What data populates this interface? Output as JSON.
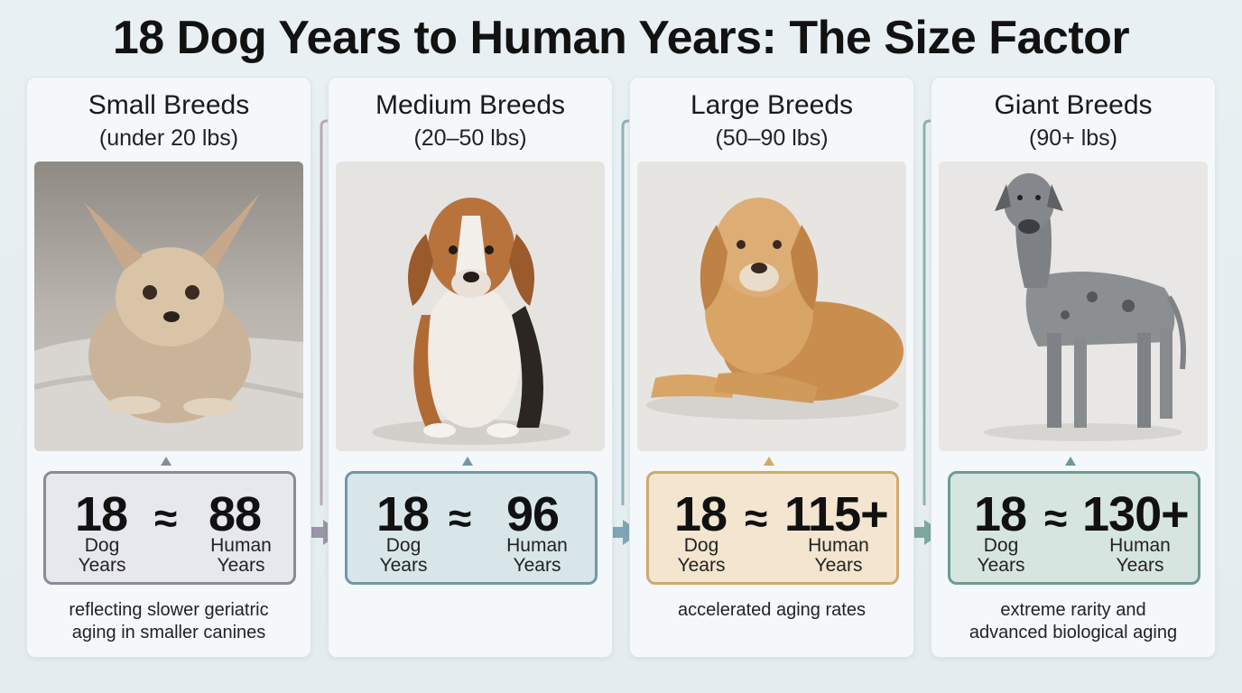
{
  "title": "18 Dog Years to Human Years: The Size Factor",
  "cards": [
    {
      "title": "Small Breeds",
      "subtitle": "(under 20 lbs)",
      "dog_value": "18",
      "dog_unit_line1": "Dog",
      "dog_unit_line2": "Years",
      "approx": "≈",
      "human_value": "88",
      "human_unit_line1": "Human",
      "human_unit_line2": "Years",
      "note_line1": "reflecting slower geriatric",
      "note_line2": "aging in smaller canines",
      "accent": "#8a8a99",
      "box_bg": "#e7e8ee"
    },
    {
      "title": "Medium Breeds",
      "subtitle": "(20–50 lbs)",
      "dog_value": "18",
      "dog_unit_line1": "Dog",
      "dog_unit_line2": "Years",
      "approx": "≈",
      "human_value": "96",
      "human_unit_line1": "Human",
      "human_unit_line2": "Years",
      "note_line1": "",
      "note_line2": "",
      "accent": "#6f98a5",
      "box_bg": "#d8e6ea"
    },
    {
      "title": "Large Breeds",
      "subtitle": "(50–90 lbs)",
      "dog_value": "18",
      "dog_unit_line1": "Dog",
      "dog_unit_line2": "Years",
      "approx": "≈",
      "human_value": "115+",
      "human_unit_line1": "Human",
      "human_unit_line2": "Years",
      "note_line1": "accelerated aging rates",
      "note_line2": "",
      "accent": "#cfa96f",
      "box_bg": "#f3e5cf"
    },
    {
      "title": "Giant Breeds",
      "subtitle": "(90+ lbs)",
      "dog_value": "18",
      "dog_unit_line1": "Dog",
      "dog_unit_line2": "Years",
      "approx": "≈",
      "human_value": "130+",
      "human_unit_line1": "Human",
      "human_unit_line2": "Years",
      "note_line1": "extreme rarity and",
      "note_line2": "advanced biological aging",
      "accent": "#6e9a90",
      "box_bg": "#d7e5e1"
    }
  ],
  "photos": [
    "chihuahua",
    "beagle",
    "golden-retriever",
    "great-dane"
  ],
  "connector_colors": [
    "#a7a0b0",
    "#7fa7b0",
    "#7fa7ac"
  ]
}
